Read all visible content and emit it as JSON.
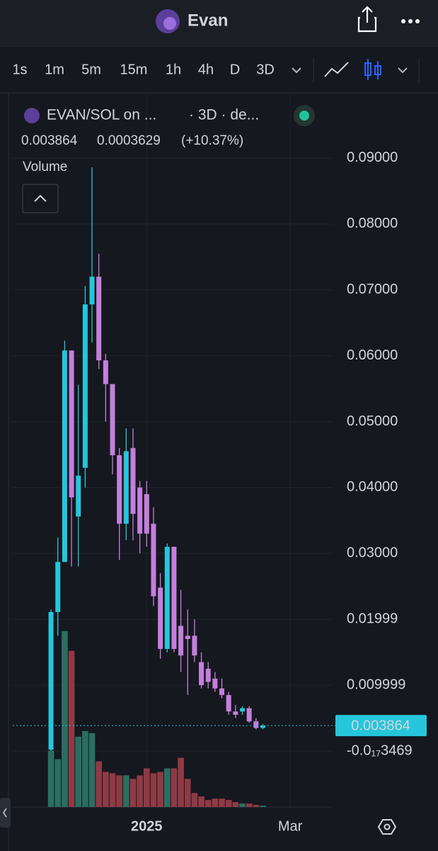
{
  "header": {
    "title": "Evan"
  },
  "toolbar": {
    "timeframes": [
      "1s",
      "1m",
      "5m",
      "15m",
      "1h",
      "4h",
      "D",
      "3D"
    ],
    "active": "3D"
  },
  "legend": {
    "symbol": "EVAN/SOL on ...",
    "interval": "· 3D · de...",
    "price": "0.003864",
    "change": "0.0003629",
    "change_percent": "(+10.37%)"
  },
  "volume_label": "Volume",
  "chart_data": {
    "type": "candlestick",
    "open": [
      0.0002,
      0.0211,
      0.0287,
      0.0608,
      0.0356,
      0.043,
      0.0678,
      0.072,
      0.0593,
      0.0557,
      0.0449,
      0.0345,
      0.046,
      0.04,
      0.039,
      0.0345,
      0.0248,
      0.0155,
      0.031,
      0.019,
      0.0175,
      0.0175,
      0.0135,
      0.0125,
      0.011,
      0.0095,
      0.0085,
      0.006,
      0.006,
      0.0065,
      0.0045,
      0.0035
    ],
    "high": [
      0.0215,
      0.0324,
      0.0623,
      0.0608,
      0.0556,
      0.0706,
      0.0886,
      0.0755,
      0.0603,
      0.0557,
      0.046,
      0.049,
      0.049,
      0.041,
      0.041,
      0.037,
      0.027,
      0.0315,
      0.031,
      0.0245,
      0.0215,
      0.02,
      0.015,
      0.0135,
      0.012,
      0.011,
      0.009,
      0.007,
      0.0068,
      0.0068,
      0.005,
      0.0041
    ],
    "low": [
      0,
      0.0175,
      0.0287,
      0.028,
      0.028,
      0.04,
      0.062,
      0.058,
      0.05,
      0.042,
      0.029,
      0.032,
      0.032,
      0.03,
      0.031,
      0.022,
      0.014,
      0.015,
      0.015,
      0.012,
      0.0085,
      0.0135,
      0.0095,
      0.0095,
      0.009,
      0.008,
      0.0055,
      0.005,
      0.0055,
      0.0043,
      0.0033,
      0.0033
    ],
    "close": [
      0.0211,
      0.0287,
      0.0608,
      0.0385,
      0.0418,
      0.0678,
      0.072,
      0.0593,
      0.0557,
      0.0449,
      0.0345,
      0.0455,
      0.036,
      0.033,
      0.033,
      0.0235,
      0.0155,
      0.031,
      0.0155,
      0.0145,
      0.017,
      0.0145,
      0.01,
      0.0105,
      0.0095,
      0.0085,
      0.006,
      0.0055,
      0.0065,
      0.0045,
      0.0035,
      0.003864
    ],
    "volume": [
      80,
      68,
      250,
      222,
      100,
      108,
      105,
      65,
      50,
      48,
      45,
      45,
      40,
      45,
      55,
      48,
      50,
      55,
      55,
      70,
      40,
      20,
      15,
      10,
      12,
      12,
      10,
      7,
      5,
      5,
      3,
      2
    ],
    "up_color": "#26c6da",
    "down_color": "#c47fdc",
    "volume_up_color": "#2a6e62",
    "volume_down_color": "#8e3a44",
    "xlim": [
      -5.6,
      41.2
    ],
    "xticks": [
      {
        "value": 14,
        "label": "2025"
      },
      {
        "value": 35,
        "label": "Mar"
      }
    ],
    "ylim": [
      -0.0085,
      0.0999
    ],
    "yticks": [
      {
        "value": -3.469e-21,
        "label": "-0.0₁₇3469"
      },
      {
        "value": 0.009999,
        "label": "0.009999"
      },
      {
        "value": 0.01999,
        "label": "0.01999"
      },
      {
        "value": 0.03,
        "label": "0.03000"
      },
      {
        "value": 0.04,
        "label": "0.04000"
      },
      {
        "value": 0.05,
        "label": "0.05000"
      },
      {
        "value": 0.06,
        "label": "0.06000"
      },
      {
        "value": 0.07,
        "label": "0.07000"
      },
      {
        "value": 0.08,
        "label": "0.08000"
      },
      {
        "value": 0.09,
        "label": "0.09000"
      }
    ],
    "volume_lim": [
      0,
      260
    ],
    "last_price": {
      "value": 0.003864,
      "label": "0.003864"
    },
    "grid": true
  }
}
